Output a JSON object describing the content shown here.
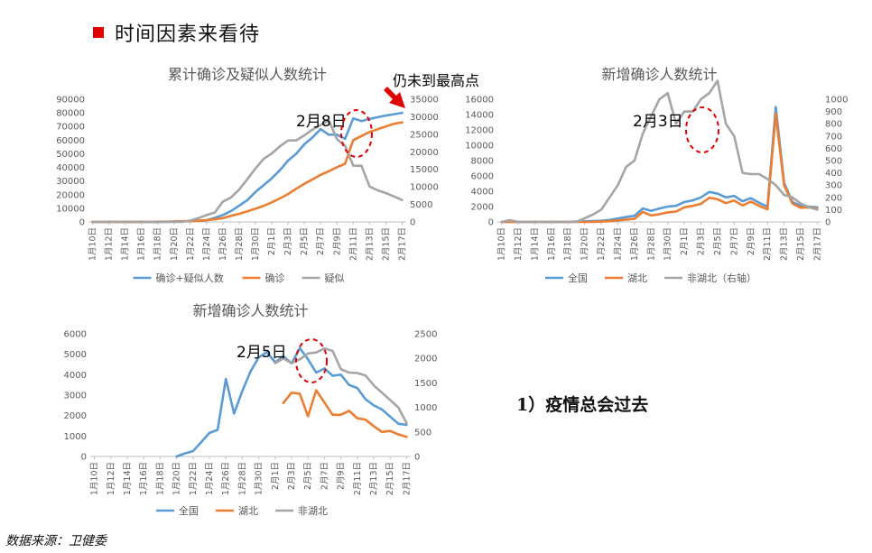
{
  "heading": {
    "text": "时间因素来看待",
    "marker_color": "#e00000"
  },
  "side_note": "1）疫情总会过去",
  "source": "数据来源：卫健委",
  "colors": {
    "blue": "#5b9bd5",
    "orange": "#ed7d31",
    "gray": "#a5a5a5",
    "annotation_red": "#e00000"
  },
  "chart_data": [
    {
      "type": "line",
      "title": "累计确诊及疑似人数统计",
      "categories": [
        "1月10日",
        "1月11日",
        "1月12日",
        "1月13日",
        "1月14日",
        "1月15日",
        "1月16日",
        "1月17日",
        "1月18日",
        "1月19日",
        "1月20日",
        "1月21日",
        "1月22日",
        "1月23日",
        "1月24日",
        "1月25日",
        "1月26日",
        "1月27日",
        "1月28日",
        "1月29日",
        "1月30日",
        "1月31日",
        "2月1日",
        "2月2日",
        "2月3日",
        "2月4日",
        "2月5日",
        "2月6日",
        "2月7日",
        "2月8日",
        "2月9日",
        "2月10日",
        "2月11日",
        "2月12日",
        "2月13日",
        "2月14日",
        "2月15日",
        "2月16日",
        "2月17日"
      ],
      "tick_labels": [
        "1月10日",
        "1月12日",
        "1月14日",
        "1月16日",
        "1月18日",
        "1月20日",
        "1月22日",
        "1月24日",
        "1月26日",
        "1月28日",
        "1月30日",
        "2月1日",
        "2月3日",
        "2月5日",
        "2月7日",
        "2月9日",
        "2月11日",
        "2月13日",
        "2月15日",
        "2月17日"
      ],
      "yticks_left": [
        "0",
        "10000",
        "20000",
        "30000",
        "40000",
        "50000",
        "60000",
        "70000",
        "80000",
        "90000"
      ],
      "yticks_right": [
        "0",
        "5000",
        "10000",
        "15000",
        "20000",
        "25000",
        "30000",
        "35000"
      ],
      "ylim_left": [
        0,
        90000
      ],
      "ylim_right": [
        0,
        35000
      ],
      "series": [
        {
          "name": "确诊+疑似人数",
          "axis": "left",
          "color": "#5b9bd5",
          "values": [
            0,
            0,
            0,
            0,
            0,
            0,
            0,
            0,
            0,
            0,
            291,
            440,
            571,
            830,
            1287,
            3000,
            5000,
            8000,
            12000,
            16000,
            22000,
            27000,
            32000,
            38000,
            45000,
            50000,
            57000,
            62000,
            68000,
            64000,
            64000,
            61000,
            76000,
            74000,
            75500,
            76800,
            78000,
            79000,
            80000
          ]
        },
        {
          "name": "确诊",
          "axis": "left",
          "color": "#ed7d31",
          "values": [
            41,
            41,
            41,
            41,
            41,
            41,
            45,
            62,
            121,
            198,
            291,
            440,
            571,
            830,
            1287,
            1975,
            2744,
            4515,
            5974,
            7711,
            9692,
            11791,
            14380,
            17205,
            20438,
            24324,
            28018,
            31161,
            34546,
            37198,
            40171,
            42638,
            60000,
            63000,
            66000,
            68000,
            70000,
            72000,
            73000
          ]
        },
        {
          "name": "疑似",
          "axis": "right",
          "color": "#a5a5a5",
          "values": [
            0,
            0,
            0,
            0,
            0,
            0,
            0,
            0,
            0,
            0,
            0,
            0,
            393,
            1072,
            1965,
            2684,
            5794,
            6973,
            9239,
            12167,
            15238,
            17988,
            19544,
            21558,
            23214,
            23260,
            24702,
            26359,
            27657,
            28942,
            23589,
            21675,
            16067,
            16000,
            10109,
            9000,
            8228,
            7264,
            6242
          ]
        }
      ],
      "annotations": [
        "2月8日",
        "仍未到最高点"
      ]
    },
    {
      "type": "line",
      "title": "新增确诊人数统计",
      "categories": [
        "1月10日",
        "1月11日",
        "1月12日",
        "1月13日",
        "1月14日",
        "1月15日",
        "1月16日",
        "1月17日",
        "1月18日",
        "1月19日",
        "1月20日",
        "1月21日",
        "1月22日",
        "1月23日",
        "1月24日",
        "1月25日",
        "1月26日",
        "1月27日",
        "1月28日",
        "1月29日",
        "1月30日",
        "1月31日",
        "2月1日",
        "2月2日",
        "2月3日",
        "2月4日",
        "2月5日",
        "2月6日",
        "2月7日",
        "2月8日",
        "2月9日",
        "2月10日",
        "2月11日",
        "2月12日",
        "2月13日",
        "2月14日",
        "2月15日",
        "2月16日",
        "2月17日"
      ],
      "tick_labels": [
        "1月10日",
        "1月12日",
        "1月14日",
        "1月16日",
        "1月18日",
        "1月20日",
        "1月22日",
        "1月24日",
        "1月26日",
        "1月28日",
        "1月30日",
        "2月1日",
        "2月3日",
        "2月5日",
        "2月7日",
        "2月9日",
        "2月11日",
        "2月13日",
        "2月15日",
        "2月17日"
      ],
      "yticks_left": [
        "0",
        "2000",
        "4000",
        "6000",
        "8000",
        "10000",
        "12000",
        "14000",
        "16000"
      ],
      "yticks_right": [
        "0",
        "100",
        "200",
        "300",
        "400",
        "500",
        "600",
        "700",
        "800",
        "900",
        "1000"
      ],
      "ylim_left": [
        0,
        16000
      ],
      "ylim_right": [
        0,
        1000
      ],
      "series": [
        {
          "name": "全国",
          "axis": "left",
          "color": "#5b9bd5",
          "values": [
            0,
            0,
            0,
            0,
            0,
            0,
            0,
            0,
            0,
            50,
            80,
            120,
            150,
            250,
            450,
            650,
            800,
            1750,
            1450,
            1750,
            2000,
            2100,
            2600,
            2800,
            3200,
            3900,
            3700,
            3200,
            3400,
            2700,
            3100,
            2500,
            2000,
            15000,
            5100,
            2600,
            2100,
            2000,
            1900
          ]
        },
        {
          "name": "湖北",
          "axis": "left",
          "color": "#ed7d31",
          "values": [
            0,
            0,
            0,
            0,
            0,
            0,
            0,
            0,
            0,
            0,
            0,
            0,
            50,
            100,
            200,
            300,
            400,
            1300,
            850,
            1000,
            1250,
            1350,
            1900,
            2100,
            2350,
            3150,
            2950,
            2450,
            2800,
            2150,
            2650,
            2100,
            1650,
            14100,
            4800,
            2400,
            1850,
            1900,
            1750
          ]
        },
        {
          "name": "非湖北（右轴）",
          "axis": "right",
          "color": "#a5a5a5",
          "values": [
            0,
            15,
            0,
            0,
            0,
            0,
            0,
            0,
            0,
            0,
            30,
            60,
            100,
            200,
            300,
            450,
            500,
            720,
            860,
            1000,
            1050,
            800,
            900,
            900,
            1000,
            1050,
            1150,
            800,
            700,
            400,
            390,
            390,
            350,
            300,
            220,
            200,
            150,
            120,
            100
          ]
        }
      ],
      "annotations": [
        "2月3日"
      ]
    },
    {
      "type": "line",
      "title": "新增确诊人数统计",
      "categories": [
        "1月10日",
        "1月11日",
        "1月12日",
        "1月13日",
        "1月14日",
        "1月15日",
        "1月16日",
        "1月17日",
        "1月18日",
        "1月19日",
        "1月20日",
        "1月21日",
        "1月22日",
        "1月23日",
        "1月24日",
        "1月25日",
        "1月26日",
        "1月27日",
        "1月28日",
        "1月29日",
        "1月30日",
        "1月31日",
        "2月1日",
        "2月2日",
        "2月3日",
        "2月4日",
        "2月5日",
        "2月6日",
        "2月7日",
        "2月8日",
        "2月9日",
        "2月10日",
        "2月11日",
        "2月12日",
        "2月13日",
        "2月14日",
        "2月15日",
        "2月16日",
        "2月17日"
      ],
      "tick_labels": [
        "1月10日",
        "1月12日",
        "1月14日",
        "1月16日",
        "1月18日",
        "1月20日",
        "1月22日",
        "1月24日",
        "1月26日",
        "1月28日",
        "1月30日",
        "2月1日",
        "2月3日",
        "2月5日",
        "2月7日",
        "2月9日",
        "2月11日",
        "2月13日",
        "2月15日",
        "2月17日"
      ],
      "yticks_left": [
        "0",
        "1000",
        "2000",
        "3000",
        "4000",
        "5000",
        "6000"
      ],
      "yticks_right": [
        "0",
        "500",
        "1000",
        "1500",
        "2000",
        "2500"
      ],
      "ylim_left": [
        0,
        6000
      ],
      "ylim_right": [
        0,
        2500
      ],
      "series": [
        {
          "name": "全国",
          "axis": "left",
          "color": "#5b9bd5",
          "values": [
            null,
            null,
            null,
            null,
            null,
            null,
            null,
            null,
            null,
            null,
            0,
            150,
            260,
            700,
            1150,
            1300,
            3800,
            2100,
            3200,
            4150,
            4850,
            5100,
            4600,
            4900,
            4550,
            5300,
            4750,
            4100,
            4300,
            3950,
            4000,
            3500,
            3350,
            2800,
            2500,
            2300,
            1950,
            1600,
            1550
          ]
        },
        {
          "name": "湖北",
          "axis": "right",
          "color": "#ed7d31",
          "values": [
            null,
            null,
            null,
            null,
            null,
            null,
            null,
            null,
            null,
            null,
            null,
            null,
            null,
            null,
            null,
            null,
            null,
            null,
            null,
            null,
            null,
            null,
            null,
            1090,
            1300,
            1280,
            820,
            1350,
            1100,
            850,
            850,
            930,
            780,
            750,
            620,
            500,
            520,
            450,
            400
          ]
        },
        {
          "name": "非湖北",
          "axis": "right",
          "color": "#a5a5a5",
          "values": [
            null,
            null,
            null,
            null,
            null,
            null,
            null,
            null,
            null,
            null,
            null,
            null,
            null,
            null,
            null,
            null,
            null,
            null,
            null,
            null,
            null,
            null,
            1900,
            2000,
            1900,
            1980,
            2100,
            2120,
            2200,
            2150,
            1780,
            1710,
            1700,
            1650,
            1450,
            1300,
            1150,
            1000,
            680
          ]
        }
      ],
      "annotations": [
        "2月5日"
      ]
    }
  ]
}
